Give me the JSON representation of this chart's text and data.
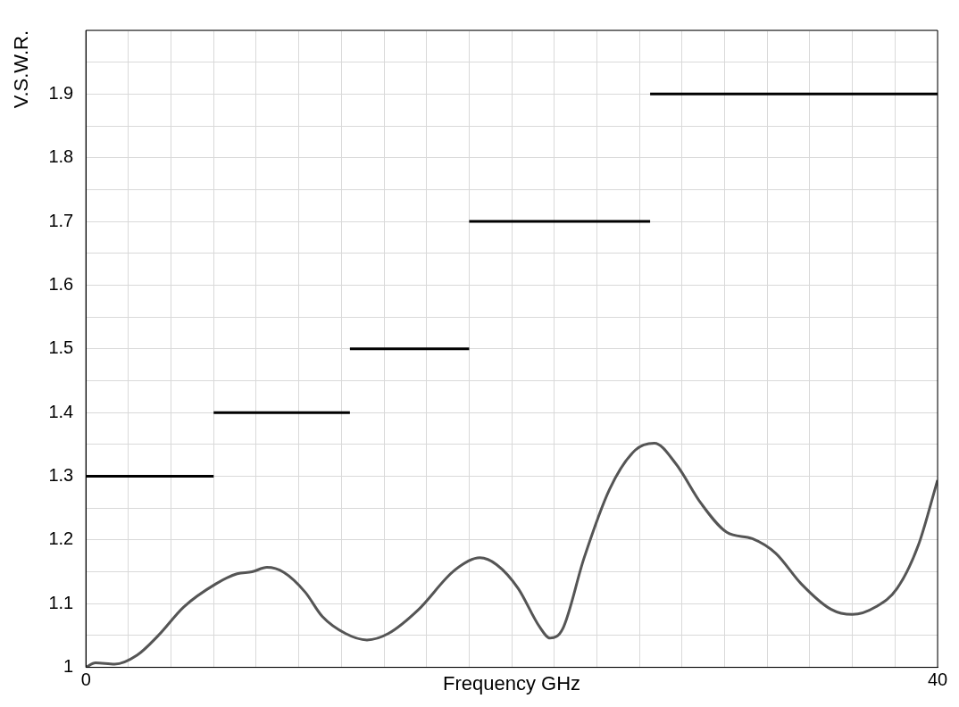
{
  "chart_data": {
    "type": "line",
    "xlabel": "Frequency GHz",
    "ylabel": "V.S.W.R.",
    "xlim": [
      0,
      40
    ],
    "xticks": [
      0,
      {
        "value": 2,
        "label": null
      },
      {
        "value": 4,
        "label": null
      },
      {
        "value": 6,
        "label": null
      },
      {
        "value": 8,
        "label": null
      },
      {
        "value": 10,
        "label": null
      },
      {
        "value": 12,
        "label": null
      },
      {
        "value": 14,
        "label": null
      },
      {
        "value": 16,
        "label": null
      },
      {
        "value": 18,
        "label": null
      },
      {
        "value": 20,
        "label": null
      },
      {
        "value": 22,
        "label": null
      },
      {
        "value": 24,
        "label": null
      },
      {
        "value": 26,
        "label": null
      },
      {
        "value": 28,
        "label": null
      },
      {
        "value": 30,
        "label": null
      },
      {
        "value": 32,
        "label": null
      },
      {
        "value": 34,
        "label": null
      },
      {
        "value": 36,
        "label": null
      },
      {
        "value": 38,
        "label": null
      },
      40
    ],
    "ylim": [
      1,
      2
    ],
    "yticks": [
      1,
      {
        "value": 1.05,
        "label": null
      },
      1.1,
      {
        "value": 1.15,
        "label": null
      },
      1.2,
      {
        "value": 1.25,
        "label": null
      },
      1.3,
      {
        "value": 1.35,
        "label": null
      },
      1.4,
      {
        "value": 1.45,
        "label": null
      },
      1.5,
      {
        "value": 1.55,
        "label": null
      },
      1.6,
      {
        "value": 1.65,
        "label": null
      },
      1.7,
      {
        "value": 1.75,
        "label": null
      },
      1.8,
      {
        "value": 1.85,
        "label": null
      },
      1.9,
      {
        "value": 1.95,
        "label": null
      },
      {
        "value": 2,
        "label": null
      }
    ],
    "grid": true,
    "legend": false,
    "marker": "none",
    "line_style": "solid",
    "series": [
      {
        "color": "#555555",
        "x": [
          0,
          0.45,
          1.35,
          2.4,
          3.4,
          4.6,
          6.1,
          7.1,
          7.8,
          8.5,
          9.3,
          10.3,
          11.1,
          12.2,
          13.2,
          14.2,
          15.6,
          17.3,
          18.5,
          19.3,
          20.3,
          21.3,
          21.8,
          22.4,
          23.4,
          24.6,
          25.8,
          26.7,
          27.7,
          28.9,
          30.1,
          31.3,
          32.4,
          33.6,
          35,
          36,
          37.1,
          38.1,
          39.1,
          40
        ],
        "values": [
          1,
          1.007,
          1.005,
          1.019,
          1.05,
          1.095,
          1.131,
          1.147,
          1.15,
          1.157,
          1.149,
          1.118,
          1.08,
          1.053,
          1.043,
          1.053,
          1.09,
          1.152,
          1.172,
          1.161,
          1.124,
          1.064,
          1.046,
          1.061,
          1.172,
          1.28,
          1.341,
          1.352,
          1.32,
          1.257,
          1.212,
          1.202,
          1.179,
          1.131,
          1.091,
          1.083,
          1.095,
          1.124,
          1.192,
          1.294
        ]
      },
      {
        "color": "#000000",
        "x": [
          0,
          6
        ],
        "values": [
          1.3,
          1.3
        ]
      },
      {
        "color": "#000000",
        "x": [
          6,
          12.4
        ],
        "values": [
          1.4,
          1.4
        ]
      },
      {
        "color": "#000000",
        "x": [
          12.4,
          18
        ],
        "values": [
          1.5,
          1.5
        ]
      },
      {
        "color": "#000000",
        "x": [
          18,
          26.5
        ],
        "values": [
          1.7,
          1.7
        ]
      },
      {
        "color": "#000000",
        "x": [
          26.5,
          40
        ],
        "values": [
          1.9,
          1.9
        ]
      }
    ]
  }
}
